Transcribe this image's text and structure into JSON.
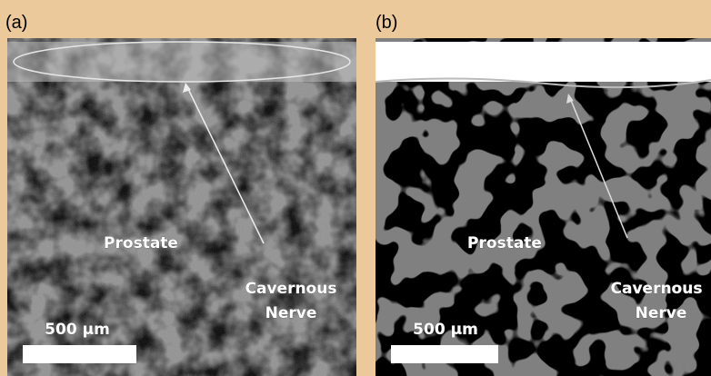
{
  "panels": [
    {
      "label": "(a)",
      "annotations": [
        "Prostate",
        "Cavernous",
        "Nerve"
      ],
      "scale_bar": "500 µm"
    },
    {
      "label": "(b)",
      "annotations": [
        "Prostate",
        "Cavernous",
        "Nerve"
      ],
      "scale_bar": "500 µm"
    }
  ]
}
